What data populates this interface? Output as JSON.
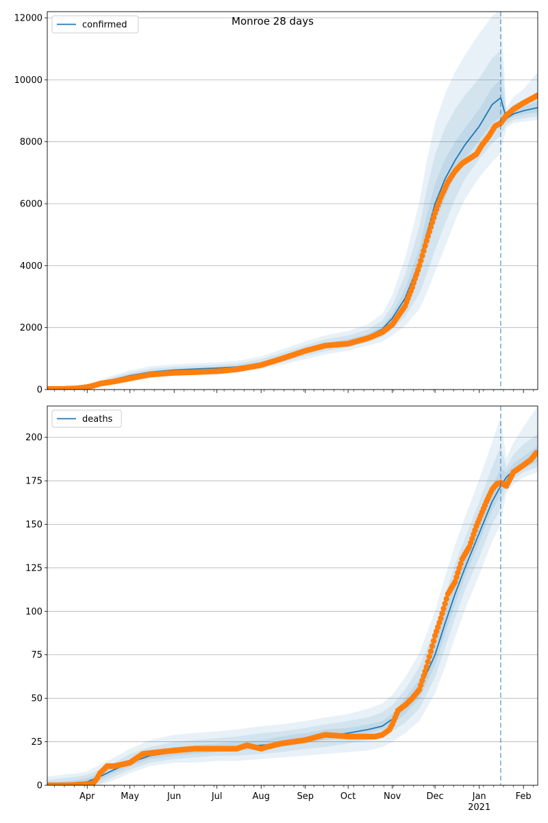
{
  "figure_title": "Monroe 28 days",
  "year_label": "2021",
  "colors": {
    "model_line": "#1f77b4",
    "observed": "#ff7f0e",
    "band": "#1f77b4",
    "forecast_line": "#1f77b4",
    "grid": "#b0b0b0"
  },
  "chart_data": [
    {
      "type": "line",
      "legend": "confirmed",
      "legend_position": "top-left",
      "grid": "horizontal",
      "xlim": [
        "2020-03-04",
        "2021-02-11"
      ],
      "ylim": [
        0,
        12200
      ],
      "yticks": [
        0,
        2000,
        4000,
        6000,
        8000,
        10000,
        12000
      ],
      "forecast_start": "2021-01-16",
      "model": {
        "x": [
          "2020-03-04",
          "2020-03-20",
          "2020-04-01",
          "2020-04-10",
          "2020-04-20",
          "2020-05-01",
          "2020-05-15",
          "2020-06-01",
          "2020-06-15",
          "2020-07-01",
          "2020-07-15",
          "2020-08-01",
          "2020-08-15",
          "2020-09-01",
          "2020-09-15",
          "2020-10-01",
          "2020-10-15",
          "2020-10-25",
          "2020-11-01",
          "2020-11-10",
          "2020-11-20",
          "2020-11-25",
          "2020-12-01",
          "2020-12-08",
          "2020-12-15",
          "2020-12-22",
          "2021-01-01",
          "2021-01-10",
          "2021-01-16",
          "2021-01-20",
          "2021-01-25",
          "2021-02-01",
          "2021-02-11"
        ],
        "y": [
          20,
          25,
          60,
          200,
          330,
          450,
          560,
          630,
          660,
          690,
          730,
          850,
          1020,
          1250,
          1420,
          1550,
          1720,
          1950,
          2300,
          2950,
          4100,
          5000,
          6000,
          6800,
          7400,
          7900,
          8500,
          9200,
          9420,
          8750,
          8900,
          9000,
          9100
        ]
      },
      "bands": [
        {
          "level": 1,
          "low": [
            20,
            23,
            55,
            180,
            300,
            410,
            520,
            590,
            620,
            650,
            690,
            800,
            960,
            1180,
            1340,
            1470,
            1640,
            1850,
            2150,
            2700,
            3700,
            4450,
            5350,
            6200,
            6900,
            7450,
            8050,
            8600,
            8800,
            8650,
            8800,
            8880,
            8950
          ],
          "high": [
            20,
            28,
            68,
            220,
            360,
            490,
            600,
            670,
            700,
            730,
            770,
            900,
            1080,
            1320,
            1500,
            1630,
            1800,
            2050,
            2450,
            3250,
            4550,
            5600,
            6650,
            7450,
            8000,
            8450,
            9050,
            9750,
            10000,
            8850,
            9050,
            9150,
            9300
          ]
        },
        {
          "level": 2,
          "low": [
            20,
            20,
            45,
            150,
            260,
            360,
            460,
            530,
            560,
            590,
            630,
            730,
            870,
            1080,
            1240,
            1370,
            1530,
            1700,
            1950,
            2350,
            3100,
            3700,
            4500,
            5350,
            6150,
            6800,
            7450,
            7950,
            8200,
            8550,
            8700,
            8760,
            8820
          ],
          "high": [
            20,
            32,
            85,
            260,
            410,
            550,
            670,
            740,
            770,
            800,
            840,
            980,
            1180,
            1430,
            1620,
            1750,
            1940,
            2230,
            2720,
            3700,
            5250,
            6450,
            7600,
            8450,
            9050,
            9500,
            10050,
            10700,
            10950,
            8950,
            9200,
            9350,
            9550
          ]
        },
        {
          "level": 3,
          "low": [
            20,
            18,
            35,
            120,
            220,
            310,
            400,
            470,
            500,
            530,
            570,
            660,
            790,
            980,
            1130,
            1260,
            1420,
            1550,
            1750,
            2050,
            2600,
            3100,
            3800,
            4600,
            5450,
            6150,
            6850,
            7350,
            7600,
            8450,
            8600,
            8650,
            8700
          ],
          "high": [
            20,
            38,
            105,
            310,
            470,
            620,
            750,
            820,
            850,
            880,
            920,
            1070,
            1290,
            1550,
            1750,
            1890,
            2110,
            2450,
            3050,
            4250,
            6050,
            7350,
            8600,
            9550,
            10250,
            10800,
            11500,
            12050,
            12300,
            9100,
            9450,
            9700,
            10250
          ]
        }
      ],
      "observed": {
        "x": [
          "2020-03-04",
          "2020-03-15",
          "2020-03-25",
          "2020-04-01",
          "2020-04-05",
          "2020-04-10",
          "2020-04-20",
          "2020-05-01",
          "2020-05-15",
          "2020-06-01",
          "2020-06-15",
          "2020-07-01",
          "2020-07-15",
          "2020-08-01",
          "2020-08-15",
          "2020-09-01",
          "2020-09-15",
          "2020-10-01",
          "2020-10-15",
          "2020-10-25",
          "2020-11-01",
          "2020-11-10",
          "2020-11-15",
          "2020-11-20",
          "2020-11-25",
          "2020-12-01",
          "2020-12-05",
          "2020-12-10",
          "2020-12-15",
          "2020-12-20",
          "2020-12-25",
          "2020-12-30",
          "2021-01-03",
          "2021-01-08",
          "2021-01-12",
          "2021-01-16",
          "2021-01-20",
          "2021-01-25",
          "2021-02-01",
          "2021-02-07",
          "2021-02-11"
        ],
        "y": [
          20,
          20,
          40,
          80,
          120,
          190,
          260,
          360,
          480,
          540,
          560,
          590,
          650,
          790,
          990,
          1250,
          1420,
          1480,
          1660,
          1850,
          2100,
          2700,
          3300,
          4000,
          4800,
          5700,
          6200,
          6700,
          7050,
          7300,
          7450,
          7600,
          7900,
          8200,
          8500,
          8600,
          8850,
          9050,
          9250,
          9400,
          9500
        ]
      }
    },
    {
      "type": "line",
      "legend": "deaths",
      "legend_position": "top-left",
      "grid": "horizontal",
      "xlim": [
        "2020-03-04",
        "2021-02-11"
      ],
      "ylim": [
        0,
        218
      ],
      "yticks": [
        0,
        25,
        50,
        75,
        100,
        125,
        150,
        175,
        200
      ],
      "forecast_start": "2021-01-16",
      "model": {
        "x": [
          "2020-03-04",
          "2020-03-25",
          "2020-04-01",
          "2020-04-10",
          "2020-04-20",
          "2020-05-01",
          "2020-05-15",
          "2020-06-01",
          "2020-06-15",
          "2020-07-01",
          "2020-07-15",
          "2020-08-01",
          "2020-08-15",
          "2020-09-01",
          "2020-09-15",
          "2020-10-01",
          "2020-10-15",
          "2020-10-25",
          "2020-11-01",
          "2020-11-10",
          "2020-11-20",
          "2020-12-01",
          "2020-12-08",
          "2020-12-15",
          "2020-12-22",
          "2021-01-01",
          "2021-01-10",
          "2021-01-16",
          "2021-01-20",
          "2021-01-25",
          "2021-02-01",
          "2021-02-11"
        ],
        "y": [
          0,
          1,
          2,
          5,
          9,
          13,
          17,
          19,
          20,
          21,
          22,
          23,
          24,
          26,
          28,
          30,
          32,
          34,
          38,
          45,
          55,
          75,
          93,
          110,
          125,
          145,
          163,
          172,
          177,
          181,
          185,
          190
        ]
      },
      "bands": [
        {
          "level": 1,
          "low": [
            0,
            0,
            1,
            3,
            7,
            11,
            15,
            17,
            18,
            19,
            20,
            21,
            22,
            24,
            26,
            28,
            30,
            32,
            35,
            41,
            50,
            69,
            87,
            104,
            120,
            140,
            158,
            167,
            174,
            178,
            182,
            186
          ],
          "high": [
            1,
            3,
            4,
            7,
            11,
            15,
            19,
            22,
            23,
            24,
            25,
            26,
            28,
            30,
            32,
            33,
            35,
            37,
            41,
            50,
            61,
            82,
            100,
            117,
            132,
            153,
            172,
            182,
            180,
            185,
            189,
            195
          ]
        },
        {
          "level": 2,
          "low": [
            0,
            0,
            0,
            1,
            5,
            9,
            13,
            15,
            16,
            17,
            17,
            18,
            19,
            21,
            22,
            24,
            26,
            28,
            31,
            36,
            44,
            62,
            79,
            96,
            112,
            131,
            150,
            159,
            172,
            176,
            180,
            183
          ],
          "high": [
            3,
            5,
            6,
            9,
            13,
            18,
            22,
            25,
            26,
            27,
            28,
            30,
            31,
            33,
            35,
            37,
            39,
            42,
            46,
            55,
            68,
            90,
            109,
            127,
            142,
            163,
            183,
            195,
            183,
            190,
            196,
            202
          ]
        },
        {
          "level": 3,
          "low": [
            0,
            0,
            0,
            0,
            3,
            7,
            11,
            13,
            13,
            14,
            14,
            15,
            16,
            17,
            18,
            19,
            20,
            22,
            25,
            30,
            37,
            53,
            68,
            85,
            101,
            121,
            140,
            150,
            168,
            173,
            177,
            180
          ],
          "high": [
            5,
            7,
            8,
            12,
            16,
            21,
            26,
            29,
            30,
            31,
            32,
            34,
            35,
            37,
            39,
            41,
            44,
            47,
            52,
            62,
            76,
            100,
            120,
            138,
            154,
            176,
            197,
            212,
            188,
            197,
            206,
            218
          ]
        }
      ],
      "observed": {
        "x": [
          "2020-03-04",
          "2020-03-20",
          "2020-04-05",
          "2020-04-08",
          "2020-04-10",
          "2020-04-15",
          "2020-04-20",
          "2020-05-01",
          "2020-05-10",
          "2020-05-20",
          "2020-06-01",
          "2020-06-15",
          "2020-07-01",
          "2020-07-10",
          "2020-07-15",
          "2020-07-22",
          "2020-08-01",
          "2020-08-05",
          "2020-08-15",
          "2020-09-01",
          "2020-09-10",
          "2020-09-15",
          "2020-10-01",
          "2020-10-10",
          "2020-10-20",
          "2020-10-25",
          "2020-10-30",
          "2020-11-01",
          "2020-11-05",
          "2020-11-10",
          "2020-11-15",
          "2020-11-20",
          "2020-11-25",
          "2020-12-01",
          "2020-12-05",
          "2020-12-10",
          "2020-12-15",
          "2020-12-20",
          "2020-12-25",
          "2020-12-30",
          "2021-01-02",
          "2021-01-06",
          "2021-01-10",
          "2021-01-13",
          "2021-01-16",
          "2021-01-20",
          "2021-01-25",
          "2021-02-01",
          "2021-02-06",
          "2021-02-10"
        ],
        "y": [
          0,
          0,
          1,
          4,
          7,
          11,
          11,
          13,
          18,
          19,
          20,
          21,
          21,
          21,
          21,
          23,
          21,
          22,
          24,
          26,
          28,
          29,
          28,
          28,
          28,
          29,
          32,
          35,
          43,
          46,
          50,
          55,
          68,
          86,
          96,
          110,
          117,
          130,
          137,
          149,
          155,
          163,
          170,
          173,
          174,
          172,
          180,
          184,
          187,
          191
        ]
      }
    }
  ]
}
